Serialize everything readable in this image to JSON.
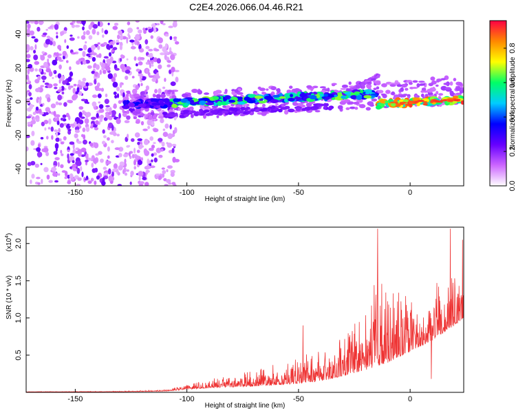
{
  "title": "C2E4.2026.066.04.46.R21",
  "chart_data": [
    {
      "type": "heatmap",
      "name": "spectrogram",
      "xlabel": "Height of straight line (km)",
      "ylabel": "Frequency (Hz)",
      "xlim": [
        -172,
        24
      ],
      "ylim": [
        -50,
        48
      ],
      "xticks": [
        -150,
        -100,
        -50,
        0
      ],
      "yticks": [
        -40,
        -20,
        0,
        20,
        40
      ],
      "colorbar": {
        "label": "Normalized spectral amplitude",
        "range": [
          0.0,
          0.96
        ],
        "ticks": [
          0.0,
          0.2,
          0.4,
          0.6,
          0.8
        ],
        "ticklabels": [
          "0.0",
          "0.2",
          "0.4",
          "0.6",
          "0.8"
        ],
        "colormap": [
          "#ffffff",
          "#cc66ff",
          "#6600ff",
          "#0000ff",
          "#00ccff",
          "#00ff66",
          "#ffff00",
          "#ff8800",
          "#ff0044"
        ]
      },
      "features": {
        "noise_region_x": [
          -172,
          -110
        ],
        "main_band_start_x": -128,
        "main_band_end_x": 24,
        "main_band_freq_start": -2,
        "main_band_freq_end": 1,
        "rising_branch": {
          "x": [
            -30,
            -14
          ],
          "freq": [
            4,
            16
          ]
        }
      }
    },
    {
      "type": "line",
      "name": "snr",
      "xlabel": "Height of straight line (km)",
      "ylabel": "SNR (10 * v/v)",
      "multiplier": "(x10",
      "multiplier_exp": "4",
      "xlim": [
        -172,
        24
      ],
      "ylim": [
        0.0,
        2.22
      ],
      "xticks": [
        -150,
        -100,
        -50,
        0
      ],
      "yticks": [
        0.5,
        1.0,
        1.5,
        2.0
      ],
      "yticklabels": [
        "0.5",
        "1.0",
        "1.5",
        "2.0"
      ],
      "color": "#ee3333",
      "envelope": {
        "x": [
          -172,
          -130,
          -110,
          -100,
          -90,
          -80,
          -70,
          -60,
          -50,
          -40,
          -30,
          -20,
          -15,
          -10,
          0,
          10,
          20,
          24
        ],
        "base": [
          0.005,
          0.008,
          0.015,
          0.04,
          0.06,
          0.07,
          0.08,
          0.1,
          0.12,
          0.15,
          0.22,
          0.3,
          0.35,
          0.4,
          0.55,
          0.7,
          0.9,
          1.0
        ],
        "amp": [
          0.005,
          0.008,
          0.02,
          0.06,
          0.12,
          0.16,
          0.22,
          0.28,
          0.36,
          0.45,
          0.6,
          0.85,
          1.3,
          0.95,
          0.8,
          0.75,
          0.65,
          0.7
        ]
      },
      "peaks": [
        {
          "x": -48,
          "y": 0.9
        },
        {
          "x": -14.5,
          "y": 2.2
        },
        {
          "x": 9.5,
          "y": 0.18
        },
        {
          "x": 18,
          "y": 2.2
        },
        {
          "x": 23.5,
          "y": 2.05
        }
      ]
    }
  ]
}
